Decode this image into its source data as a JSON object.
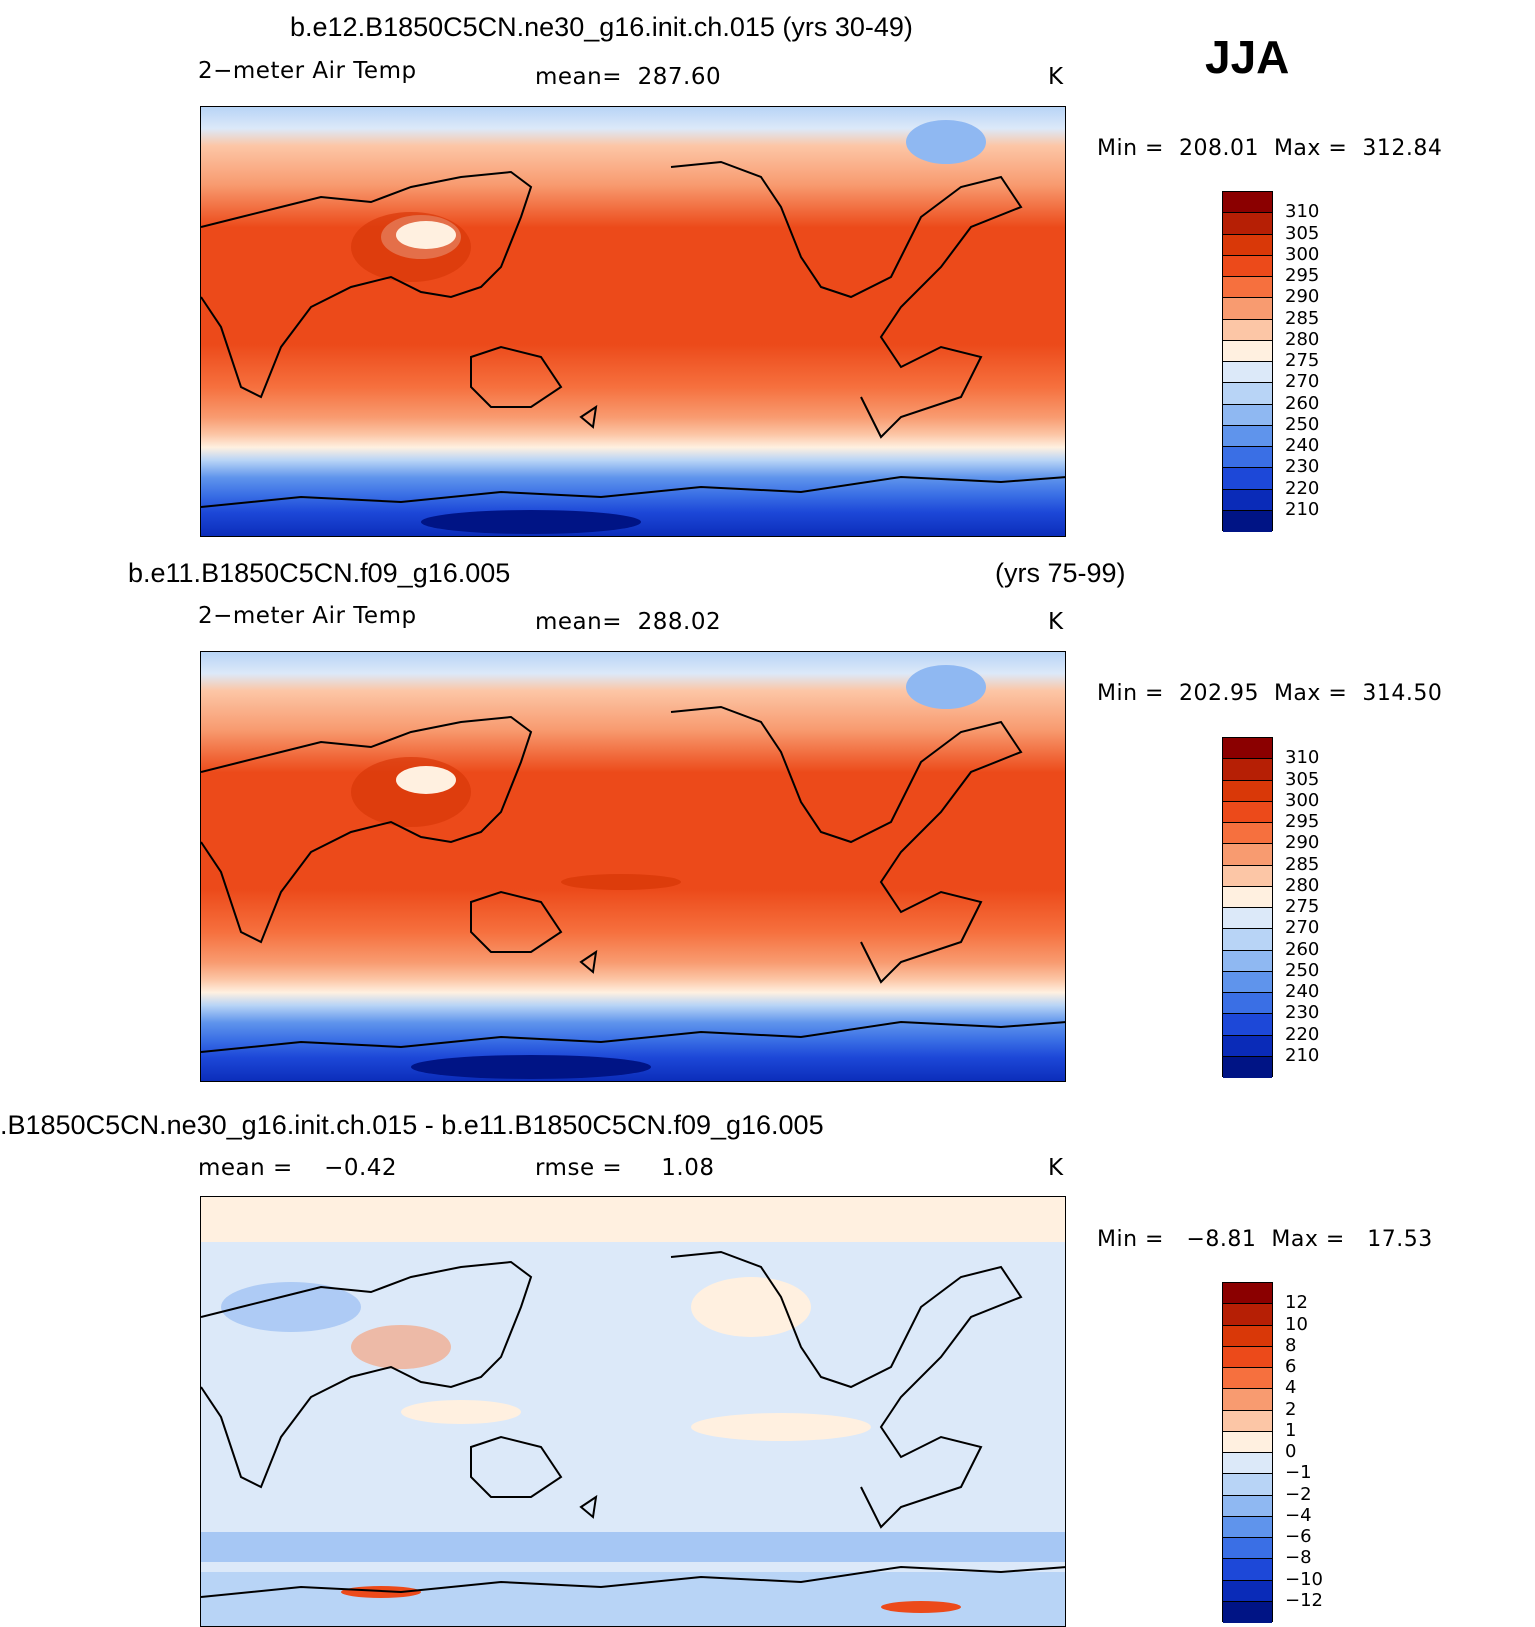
{
  "season": "JJA",
  "units": "K",
  "panels": [
    {
      "title": "b.e12.B1850C5CN.ne30_g16.init.ch.015 (yrs 30-49)",
      "variable": "2−meter Air Temp",
      "stat_label": "mean=",
      "stat_value": "287.60",
      "units": "K",
      "min_label": "Min =",
      "min_value": "208.01",
      "max_label": "Max =",
      "max_value": "312.84"
    },
    {
      "title": "b.e11.B1850C5CN.f09_g16.005",
      "title_years": "(yrs 75-99)",
      "variable": "2−meter Air Temp",
      "stat_label": "mean=",
      "stat_value": "288.02",
      "units": "K",
      "min_label": "Min =",
      "min_value": "202.95",
      "max_label": "Max =",
      "max_value": "314.50"
    },
    {
      "title": ".B1850C5CN.ne30_g16.init.ch.015 - b.e11.B1850C5CN.f09_g16.005",
      "mean_label": "mean =",
      "mean_value": "−0.42",
      "rmse_label": "rmse =",
      "rmse_value": "1.08",
      "units": "K",
      "min_label": "Min =",
      "min_value": "−8.81",
      "max_label": "Max =",
      "max_value": "17.53"
    }
  ],
  "temp_colorbar": {
    "labels": [
      "310",
      "305",
      "300",
      "295",
      "290",
      "285",
      "280",
      "275",
      "270",
      "260",
      "250",
      "240",
      "230",
      "220",
      "210"
    ],
    "colors": [
      "#8b0000",
      "#b61f05",
      "#d93808",
      "#ec4a1a",
      "#f6703e",
      "#f89b70",
      "#fcc6a6",
      "#fff0e0",
      "#dce9f9",
      "#b8d4f6",
      "#8fb8f2",
      "#5f94ec",
      "#3a6fe5",
      "#1d48d8",
      "#0a2bb8",
      "#001485"
    ]
  },
  "diff_colorbar": {
    "labels": [
      "12",
      "10",
      "8",
      "6",
      "4",
      "2",
      "1",
      "0",
      "−1",
      "−2",
      "−4",
      "−6",
      "−8",
      "−10",
      "−12"
    ],
    "colors": [
      "#8b0000",
      "#b61f05",
      "#d93808",
      "#ec4a1a",
      "#f6703e",
      "#f89b70",
      "#fcc6a6",
      "#fff0e0",
      "#dce9f9",
      "#b8d4f6",
      "#8fb8f2",
      "#5f94ec",
      "#3a6fe5",
      "#1d48d8",
      "#0a2bb8",
      "#001485"
    ]
  }
}
